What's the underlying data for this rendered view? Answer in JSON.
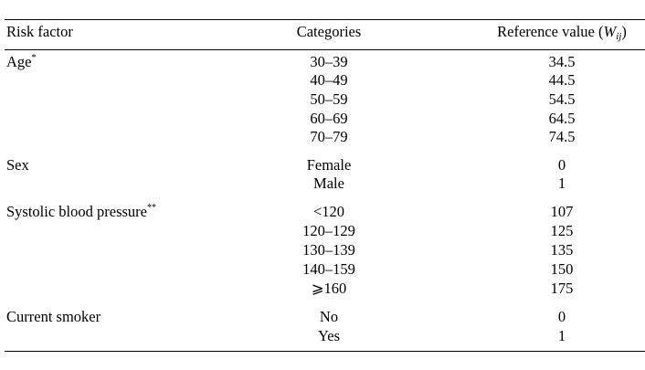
{
  "header": {
    "risk_factor": "Risk factor",
    "categories": "Categories",
    "reference_value": "Reference value (",
    "reference_symbol": "W",
    "reference_subscript": "ij",
    "reference_close": ")"
  },
  "groups": [
    {
      "label": "Age",
      "mark": "*",
      "rows": [
        {
          "category": "30–39",
          "value": "34.5"
        },
        {
          "category": "40–49",
          "value": "44.5"
        },
        {
          "category": "50–59",
          "value": "54.5"
        },
        {
          "category": "60–69",
          "value": "64.5"
        },
        {
          "category": "70–79",
          "value": "74.5"
        }
      ]
    },
    {
      "label": "Sex",
      "mark": "",
      "rows": [
        {
          "category": "Female",
          "value": "0"
        },
        {
          "category": "Male",
          "value": "1"
        }
      ]
    },
    {
      "label": "Systolic blood pressure",
      "mark": "**",
      "rows": [
        {
          "category": "<120",
          "value": "107"
        },
        {
          "category": "120–129",
          "value": "125"
        },
        {
          "category": "130–139",
          "value": "135"
        },
        {
          "category": "140–159",
          "value": "150"
        },
        {
          "category": "⩾160",
          "value": "175"
        }
      ]
    },
    {
      "label": "Current smoker",
      "mark": "",
      "rows": [
        {
          "category": "No",
          "value": "0"
        },
        {
          "category": "Yes",
          "value": "1"
        }
      ]
    }
  ]
}
